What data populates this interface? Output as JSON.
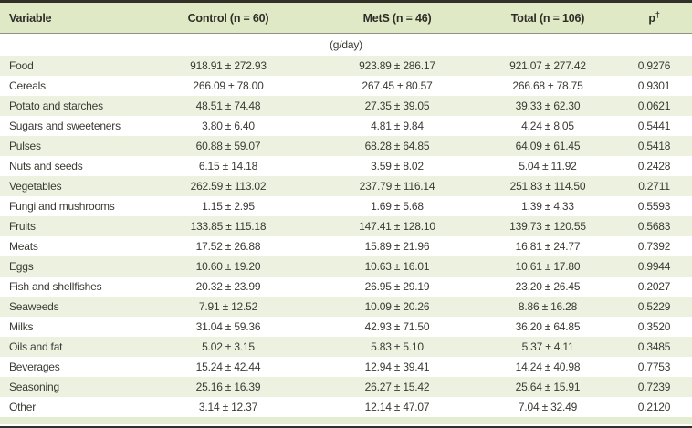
{
  "colors": {
    "header_bg": "#dfe9c5",
    "row_alt_bg": "#edf2e0",
    "rule_dark": "#31312a",
    "rule_light": "#8f9185",
    "text": "#3a3a34"
  },
  "table": {
    "columns": {
      "variable": "Variable",
      "control": "Control (n = 60)",
      "mets": "MetS (n = 46)",
      "total": "Total (n = 106)",
      "p": "p",
      "p_superscript": "†"
    },
    "unit_label": "(g/day)",
    "rows": [
      {
        "variable": "Food",
        "control": "918.91 ± 272.93",
        "mets": "923.89 ± 286.17",
        "total": "921.07 ± 277.42",
        "p": "0.9276"
      },
      {
        "variable": "Cereals",
        "control": "266.09 ± 78.00",
        "mets": "267.45 ± 80.57",
        "total": "266.68 ± 78.75",
        "p": "0.9301"
      },
      {
        "variable": "Potato and starches",
        "control": "48.51 ± 74.48",
        "mets": "27.35 ± 39.05",
        "total": "39.33 ± 62.30",
        "p": "0.0621"
      },
      {
        "variable": "Sugars and sweeteners",
        "control": "3.80 ± 6.40",
        "mets": "4.81 ± 9.84",
        "total": "4.24 ± 8.05",
        "p": "0.5441"
      },
      {
        "variable": "Pulses",
        "control": "60.88 ± 59.07",
        "mets": "68.28 ± 64.85",
        "total": "64.09 ± 61.45",
        "p": "0.5418"
      },
      {
        "variable": "Nuts and seeds",
        "control": "6.15 ± 14.18",
        "mets": "3.59 ± 8.02",
        "total": "5.04 ± 11.92",
        "p": "0.2428"
      },
      {
        "variable": "Vegetables",
        "control": "262.59 ± 113.02",
        "mets": "237.79 ± 116.14",
        "total": "251.83 ± 114.50",
        "p": "0.2711"
      },
      {
        "variable": "Fungi and mushrooms",
        "control": "1.15 ± 2.95",
        "mets": "1.69 ± 5.68",
        "total": "1.39 ± 4.33",
        "p": "0.5593"
      },
      {
        "variable": "Fruits",
        "control": "133.85 ± 115.18",
        "mets": "147.41 ± 128.10",
        "total": "139.73 ± 120.55",
        "p": "0.5683"
      },
      {
        "variable": "Meats",
        "control": "17.52 ± 26.88",
        "mets": "15.89 ± 21.96",
        "total": "16.81 ± 24.77",
        "p": "0.7392"
      },
      {
        "variable": "Eggs",
        "control": "10.60 ± 19.20",
        "mets": "10.63 ± 16.01",
        "total": "10.61 ± 17.80",
        "p": "0.9944"
      },
      {
        "variable": "Fish and shellfishes",
        "control": "20.32 ± 23.99",
        "mets": "26.95 ± 29.19",
        "total": "23.20 ± 26.45",
        "p": "0.2027"
      },
      {
        "variable": "Seaweeds",
        "control": "7.91 ± 12.52",
        "mets": "10.09 ± 20.26",
        "total": "8.86 ± 16.28",
        "p": "0.5229"
      },
      {
        "variable": "Milks",
        "control": "31.04 ± 59.36",
        "mets": "42.93 ± 71.50",
        "total": "36.20 ± 64.85",
        "p": "0.3520"
      },
      {
        "variable": "Oils and fat",
        "control": "5.02 ± 3.15",
        "mets": "5.83 ± 5.10",
        "total": "5.37 ± 4.11",
        "p": "0.3485"
      },
      {
        "variable": "Beverages",
        "control": "15.24 ± 42.44",
        "mets": "12.94 ± 39.41",
        "total": "14.24 ± 40.98",
        "p": "0.7753"
      },
      {
        "variable": "Seasoning",
        "control": "25.16 ± 16.39",
        "mets": "26.27 ± 15.42",
        "total": "25.64 ± 15.91",
        "p": "0.7239"
      },
      {
        "variable": "Other",
        "control": "3.14 ± 12.37",
        "mets": "12.14 ± 47.07",
        "total": "7.04 ± 32.49",
        "p": "0.2120"
      }
    ]
  }
}
